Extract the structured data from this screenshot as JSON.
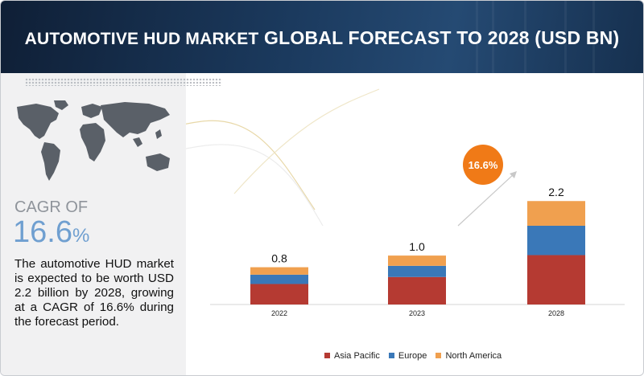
{
  "title": {
    "part1": "AUTOMOTIVE HUD MARKET",
    "part2": "GLOBAL FORECAST TO 2028 (USD BN)"
  },
  "left_panel": {
    "cagr_label": "CAGR OF",
    "cagr_number": "16.6",
    "cagr_symbol": "%",
    "description": "The automotive HUD market is expected to be worth USD 2.2 billion by 2028, growing at a CAGR of 16.6% during the forecast period."
  },
  "colors": {
    "asia_pacific": "#b53a32",
    "europe": "#3a78b8",
    "north_america": "#f0a04f",
    "bubble": "#f07a17"
  },
  "chart_data": {
    "type": "bar",
    "stacked": true,
    "categories": [
      "2022",
      "2023",
      "2028"
    ],
    "series": [
      {
        "name": "Asia Pacific",
        "values": [
          0.44,
          0.59,
          1.06
        ]
      },
      {
        "name": "Europe",
        "values": [
          0.2,
          0.24,
          0.63
        ]
      },
      {
        "name": "North America",
        "values": [
          0.16,
          0.22,
          0.53
        ]
      }
    ],
    "totals": [
      "0.8",
      "1.0",
      "2.2"
    ],
    "annotation": "16.6%",
    "legend_position": "bottom",
    "grid": false
  }
}
